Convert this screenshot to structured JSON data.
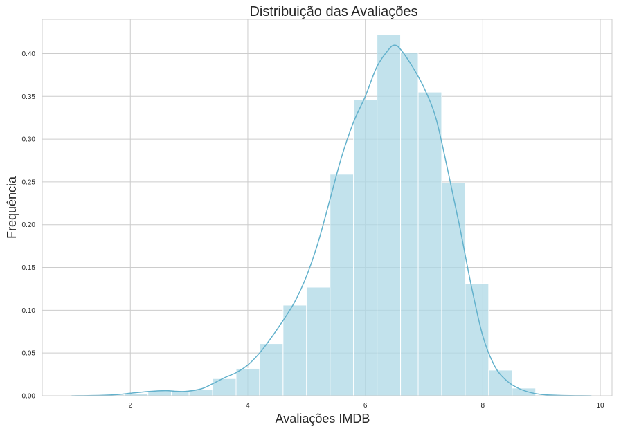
{
  "chart_data": {
    "type": "histogram",
    "title": "Distribuição das Avaliações",
    "xlabel": "Avaliações IMDB",
    "ylabel": "Frequência",
    "xlim": [
      0.5,
      10.2
    ],
    "ylim": [
      0,
      0.44
    ],
    "x_ticks": [
      2,
      4,
      6,
      8,
      10
    ],
    "y_ticks": [
      0.0,
      0.05,
      0.1,
      0.15,
      0.2,
      0.25,
      0.3,
      0.35,
      0.4
    ],
    "grid": true,
    "bins": [
      {
        "x0": 1.5,
        "x1": 1.9,
        "value": 0.001
      },
      {
        "x0": 1.9,
        "x1": 2.3,
        "value": 0.002
      },
      {
        "x0": 2.3,
        "x1": 2.7,
        "value": 0.006
      },
      {
        "x0": 2.7,
        "x1": 3.0,
        "value": 0.006
      },
      {
        "x0": 3.0,
        "x1": 3.4,
        "value": 0.007
      },
      {
        "x0": 3.4,
        "x1": 3.8,
        "value": 0.02
      },
      {
        "x0": 3.8,
        "x1": 4.2,
        "value": 0.032
      },
      {
        "x0": 4.2,
        "x1": 4.6,
        "value": 0.061
      },
      {
        "x0": 4.6,
        "x1": 5.0,
        "value": 0.106
      },
      {
        "x0": 5.0,
        "x1": 5.4,
        "value": 0.127
      },
      {
        "x0": 5.4,
        "x1": 5.8,
        "value": 0.259
      },
      {
        "x0": 5.8,
        "x1": 6.2,
        "value": 0.346
      },
      {
        "x0": 6.2,
        "x1": 6.6,
        "value": 0.422
      },
      {
        "x0": 6.6,
        "x1": 6.9,
        "value": 0.401
      },
      {
        "x0": 6.9,
        "x1": 7.3,
        "value": 0.355
      },
      {
        "x0": 7.3,
        "x1": 7.7,
        "value": 0.249
      },
      {
        "x0": 7.7,
        "x1": 8.1,
        "value": 0.131
      },
      {
        "x0": 8.1,
        "x1": 8.5,
        "value": 0.03
      },
      {
        "x0": 8.5,
        "x1": 8.9,
        "value": 0.009
      }
    ],
    "kde": {
      "x": [
        1.0,
        1.5,
        1.8,
        2.0,
        2.3,
        2.6,
        2.9,
        3.2,
        3.4,
        3.6,
        3.8,
        4.0,
        4.2,
        4.4,
        4.6,
        4.8,
        5.0,
        5.2,
        5.4,
        5.6,
        5.8,
        6.0,
        6.2,
        6.4,
        6.5,
        6.6,
        6.8,
        7.0,
        7.2,
        7.4,
        7.6,
        7.8,
        8.0,
        8.2,
        8.4,
        8.6,
        8.8,
        9.0,
        9.3,
        9.6,
        9.85
      ],
      "y": [
        0.0,
        0.0005,
        0.0015,
        0.003,
        0.005,
        0.006,
        0.005,
        0.008,
        0.014,
        0.021,
        0.027,
        0.036,
        0.05,
        0.068,
        0.088,
        0.11,
        0.14,
        0.18,
        0.23,
        0.28,
        0.32,
        0.35,
        0.385,
        0.405,
        0.41,
        0.405,
        0.385,
        0.36,
        0.325,
        0.265,
        0.2,
        0.13,
        0.07,
        0.035,
        0.018,
        0.009,
        0.004,
        0.0015,
        0.0005,
        0.0001,
        0.0
      ]
    },
    "colors": {
      "bar_fill": "#add8e6",
      "bar_edge": "#ffffff",
      "kde_line": "#62b1cc",
      "grid": "#cccccc",
      "frame": "#cccccc"
    }
  }
}
